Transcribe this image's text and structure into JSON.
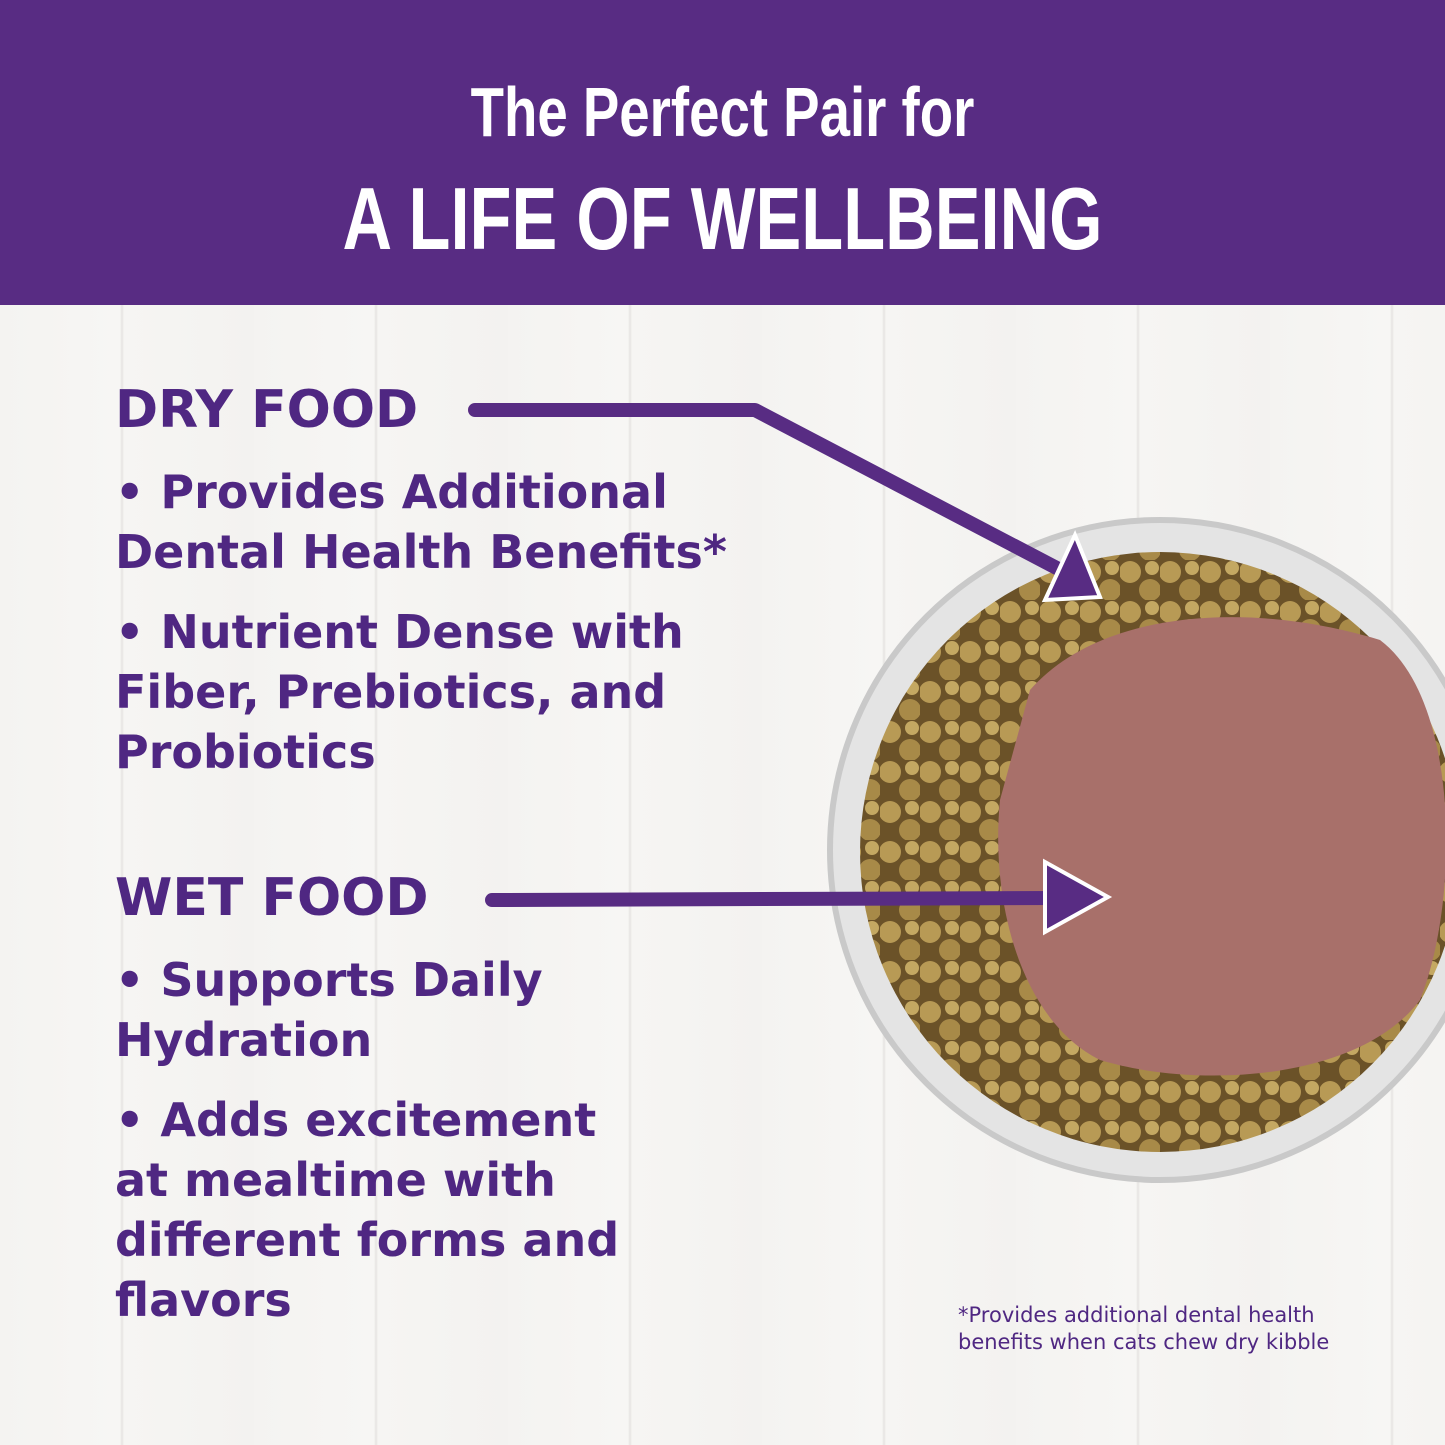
{
  "header": {
    "line1": "The Perfect Pair for",
    "line2": "A LIFE OF WELLBEING"
  },
  "dry": {
    "title": "DRY FOOD",
    "bullets": [
      "• Provides Additional Dental Health Benefits*",
      "• Nutrient Dense with Fiber, Prebiotics, and Probiotics"
    ]
  },
  "wet": {
    "title": "WET FOOD",
    "bullets": [
      "• Supports Daily Hydration",
      "• Adds excitement at mealtime with different forms and flavors"
    ]
  },
  "footnote": {
    "line1": "*Provides additional dental health",
    "line2": "benefits when cats chew dry kibble"
  },
  "colors": {
    "brand_purple": "#582c83",
    "text_purple": "#4f2782"
  }
}
